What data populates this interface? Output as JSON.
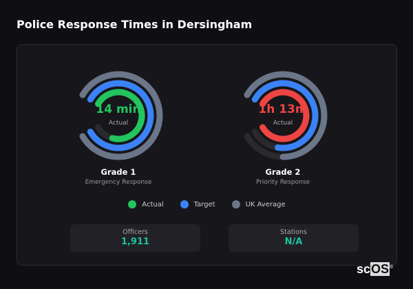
{
  "title": "Police Response Times in Dersingham",
  "colors": {
    "target": "#3b82f6",
    "uk_average": "#6b7689",
    "track": "#2a2a2e"
  },
  "gauges": [
    {
      "title": "Grade 1",
      "subtitle": "Emergency Response",
      "value": "14 min",
      "value_label": "Actual",
      "actual_color": "#22c55e",
      "fills": {
        "uk_average": 1.0,
        "target": 1.0,
        "actual": 0.85
      }
    },
    {
      "title": "Grade 2",
      "subtitle": "Priority Response",
      "value": "1h 13m",
      "value_label": "Actual",
      "actual_color": "#ef4444",
      "fills": {
        "uk_average": 0.8,
        "target": 0.83,
        "actual": 1.0
      }
    }
  ],
  "legend": [
    {
      "label": "Actual",
      "color": "#22c55e"
    },
    {
      "label": "Target",
      "color": "#3b82f6"
    },
    {
      "label": "UK Average",
      "color": "#6b7689"
    }
  ],
  "stats": [
    {
      "label": "Officers",
      "value": "1,911"
    },
    {
      "label": "Stations",
      "value": "N/A"
    }
  ],
  "logo": "scOS"
}
